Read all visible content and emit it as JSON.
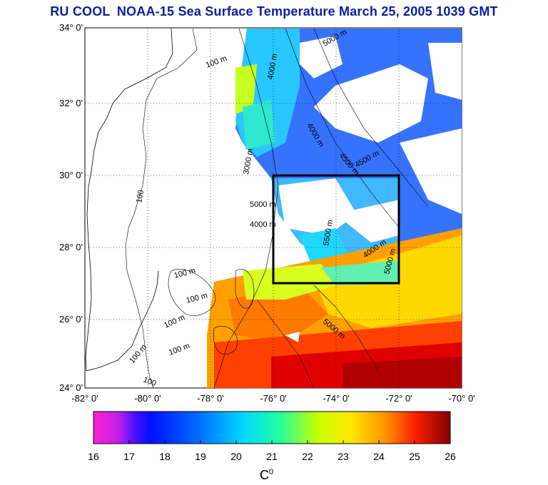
{
  "header": {
    "org": "RU COOL",
    "title": "NOAA-15 Sea Surface Temperature March 25, 2005 1039 GMT"
  },
  "map": {
    "lat_ticks": [
      "34° 0'",
      "32° 0'",
      "30° 0'",
      "28° 0'",
      "26° 0'",
      "24° 0'"
    ],
    "lon_ticks": [
      "-82° 0'",
      "-80° 0'",
      "-78° 0'",
      "-76° 0'",
      "-74° 0'",
      "-72° 0'",
      "-70° 0'"
    ],
    "lat_range": [
      24,
      34
    ],
    "lon_range": [
      -82,
      -70
    ],
    "grid": "dotted",
    "study_box": {
      "lon": [
        -76,
        -72
      ],
      "lat": [
        27,
        30
      ]
    },
    "contour_labels": [
      "100 m",
      "100",
      "3000 m",
      "4000 m",
      "4500 m",
      "5000 m",
      "100 m",
      "100 m",
      "100 m",
      "100 m",
      "100 m",
      "100",
      "5000 m",
      "4000 m",
      "5000 m",
      "5500 m",
      "4500 m",
      "4000 m",
      "5000 m",
      "4000 m"
    ]
  },
  "colorbar": {
    "ticks": [
      "16",
      "17",
      "18",
      "19",
      "20",
      "21",
      "22",
      "23",
      "24",
      "25",
      "26"
    ],
    "range": [
      16,
      26
    ],
    "colors": [
      "#ff20d0",
      "#9020ff",
      "#0010ff",
      "#0070ff",
      "#00d8ff",
      "#20ffa0",
      "#c8ff00",
      "#ffe800",
      "#ff9000",
      "#ff2000",
      "#800000"
    ],
    "unit_base": "C",
    "unit_sup": "0"
  }
}
